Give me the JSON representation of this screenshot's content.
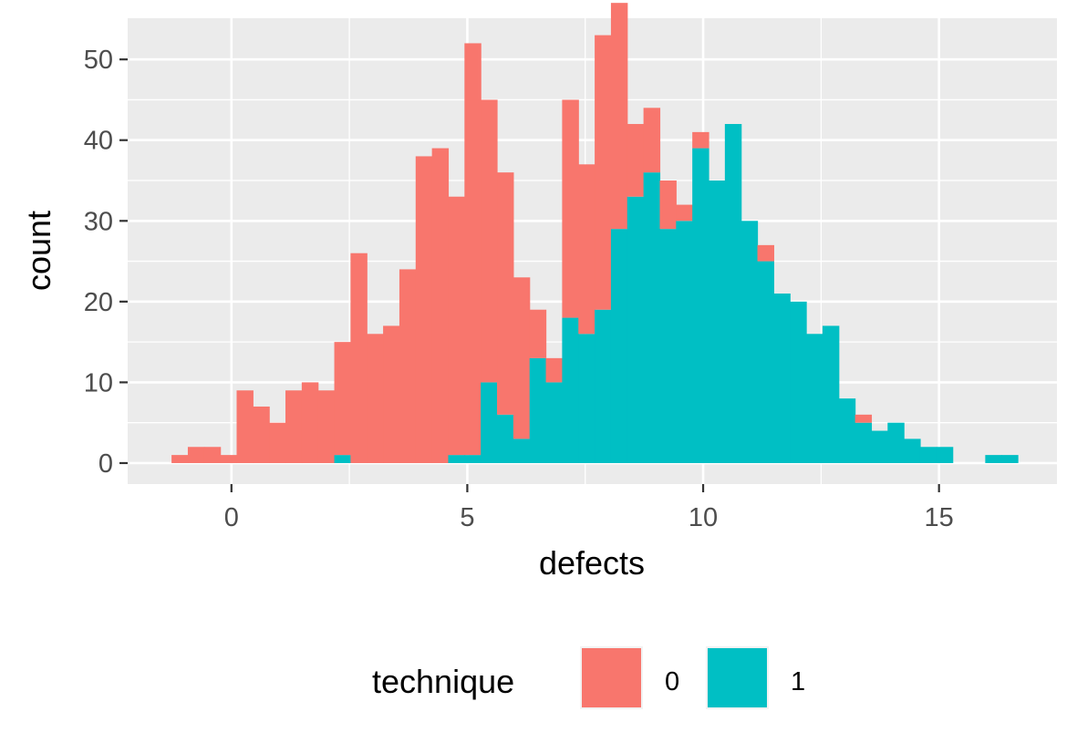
{
  "chart_data": {
    "type": "bar",
    "subtype": "stacked-histogram",
    "xlabel": "defects",
    "ylabel": "count",
    "xlim": [
      -2.2,
      17.5
    ],
    "ylim": [
      -2.6,
      55.1
    ],
    "x_ticks": [
      0,
      5,
      10,
      15
    ],
    "y_ticks": [
      0,
      10,
      20,
      30,
      40,
      50
    ],
    "bin_width": 0.345,
    "bin_start": -1.27,
    "grid": true,
    "legend": {
      "title": "technique",
      "position": "bottom"
    },
    "series": [
      {
        "name": "0",
        "color": "#F8766D",
        "values": [
          1,
          2,
          2,
          1,
          9,
          7,
          5,
          9,
          10,
          9,
          14,
          26,
          16,
          17,
          24,
          38,
          39,
          32,
          51,
          35,
          30,
          20,
          6,
          3,
          27,
          21,
          34,
          28,
          9,
          8,
          6,
          2,
          2,
          0,
          0,
          0,
          2,
          0,
          0,
          0,
          0,
          0,
          1,
          0,
          0,
          0,
          0,
          0,
          0,
          0,
          0,
          0
        ]
      },
      {
        "name": "1",
        "color": "#00BFC4",
        "values": [
          0,
          0,
          0,
          0,
          0,
          0,
          0,
          0,
          0,
          0,
          1,
          0,
          0,
          0,
          0,
          0,
          0,
          1,
          1,
          10,
          6,
          3,
          13,
          10,
          18,
          16,
          19,
          29,
          33,
          36,
          29,
          30,
          39,
          35,
          42,
          30,
          25,
          21,
          20,
          16,
          17,
          8,
          5,
          4,
          5,
          3,
          2,
          2,
          0,
          0,
          1,
          1
        ]
      }
    ]
  }
}
